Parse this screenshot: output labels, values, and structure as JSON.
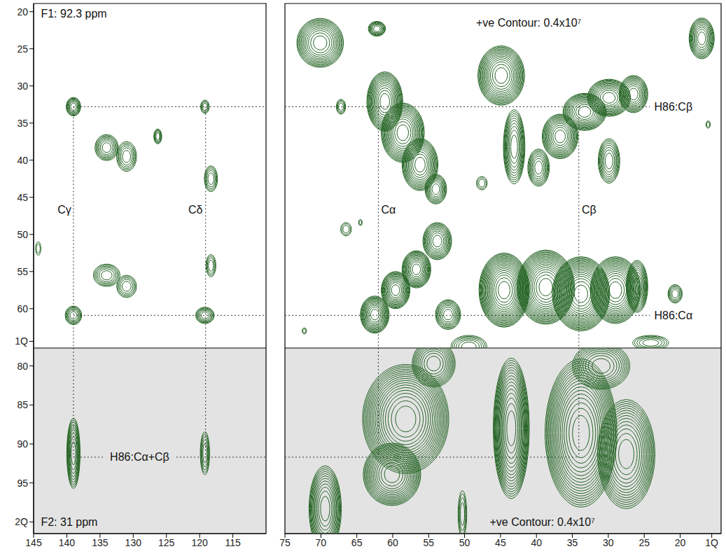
{
  "chart_data": [
    {
      "type": "contour",
      "tick_labels": "y",
      "color": "#236323",
      "line_style": "dotted",
      "xlim": [
        145,
        110
      ],
      "ylim": [
        65.3,
        18.9
      ],
      "yticks": [
        20,
        25,
        30,
        35,
        40,
        45,
        50,
        55,
        60,
        {
          "value": 64.4,
          "label": "1Q"
        }
      ],
      "peaks": [
        {
          "x": 139.0,
          "y": 32.8,
          "wx": 2.2,
          "wy": 2.5,
          "levels": 7
        },
        {
          "x": 119.2,
          "y": 32.8,
          "wx": 1.3,
          "wy": 1.8,
          "levels": 4
        },
        {
          "x": 134.0,
          "y": 38.3,
          "wx": 3.5,
          "wy": 3.5,
          "levels": 7
        },
        {
          "x": 131.0,
          "y": 39.5,
          "wx": 3.0,
          "wy": 4.0,
          "levels": 6
        },
        {
          "x": 126.3,
          "y": 36.8,
          "wx": 1.2,
          "wy": 2.0,
          "levels": 5
        },
        {
          "x": 118.3,
          "y": 42.5,
          "wx": 2.0,
          "wy": 3.5,
          "levels": 5
        },
        {
          "x": 134.0,
          "y": 55.5,
          "wx": 4.0,
          "wy": 3.0,
          "levels": 6
        },
        {
          "x": 131.0,
          "y": 57.0,
          "wx": 3.0,
          "wy": 3.0,
          "levels": 5
        },
        {
          "x": 118.3,
          "y": 54.2,
          "wx": 1.5,
          "wy": 3.0,
          "levels": 4
        },
        {
          "x": 139.0,
          "y": 60.9,
          "wx": 2.5,
          "wy": 2.5,
          "levels": 6
        },
        {
          "x": 119.2,
          "y": 60.9,
          "wx": 2.8,
          "wy": 2.2,
          "levels": 6
        },
        {
          "x": 144.3,
          "y": 51.9,
          "wx": 0.8,
          "wy": 1.8,
          "levels": 2
        }
      ],
      "guides": [
        {
          "x": [
            139,
            110
          ],
          "y": [
            32.8,
            32.8
          ]
        },
        {
          "x": [
            139,
            110
          ],
          "y": [
            60.9,
            60.9
          ]
        },
        {
          "x": [
            139,
            139
          ],
          "y": [
            32.8,
            65.3
          ]
        },
        {
          "x": [
            119.1,
            119.1
          ],
          "y": [
            32.8,
            65.3
          ]
        }
      ],
      "annotations": [
        {
          "text": "F1: 92.3 ppm",
          "x": 143.9,
          "y": 20.3
        },
        {
          "text": "Cγ",
          "x": 141.4,
          "y": 46.7
        },
        {
          "text": "Cδ",
          "x": 121.7,
          "y": 46.7
        }
      ]
    },
    {
      "type": "contour",
      "tick_labels": false,
      "color": "#236323",
      "line_style": "dotted",
      "xlim": [
        75,
        14.3
      ],
      "ylim": [
        65.3,
        18.9
      ],
      "peaks": [
        {
          "x": 70.1,
          "y": 24.2,
          "wx": 6.5,
          "wy": 6.6,
          "levels": 12
        },
        {
          "x": 62.2,
          "y": 22.3,
          "wx": 2.4,
          "wy": 2.0,
          "levels": 7
        },
        {
          "x": 17.0,
          "y": 23.6,
          "wx": 3.5,
          "wy": 5.5,
          "levels": 10
        },
        {
          "x": 67.2,
          "y": 32.8,
          "wx": 1.3,
          "wy": 2.0,
          "levels": 4
        },
        {
          "x": 61.1,
          "y": 32.1,
          "wx": 5,
          "wy": 8,
          "levels": 14
        },
        {
          "x": 58.6,
          "y": 36.3,
          "wx": 6,
          "wy": 8,
          "levels": 14
        },
        {
          "x": 56.2,
          "y": 40.6,
          "wx": 5,
          "wy": 7,
          "levels": 12
        },
        {
          "x": 54.0,
          "y": 43.9,
          "wx": 3,
          "wy": 4,
          "levels": 8
        },
        {
          "x": 44.9,
          "y": 28.6,
          "wx": 6.5,
          "wy": 8,
          "levels": 14
        },
        {
          "x": 43.1,
          "y": 38.2,
          "wx": 3,
          "wy": 10,
          "levels": 10
        },
        {
          "x": 39.7,
          "y": 41,
          "wx": 3,
          "wy": 5,
          "levels": 8
        },
        {
          "x": 36.7,
          "y": 36.8,
          "wx": 5,
          "wy": 6,
          "levels": 12
        },
        {
          "x": 33.3,
          "y": 33.5,
          "wx": 6,
          "wy": 5,
          "levels": 12
        },
        {
          "x": 29.9,
          "y": 31.6,
          "wx": 6,
          "wy": 5,
          "levels": 12
        },
        {
          "x": 26.5,
          "y": 31.1,
          "wx": 4,
          "wy": 5,
          "levels": 10
        },
        {
          "x": 29.9,
          "y": 40.1,
          "wx": 3,
          "wy": 6,
          "levels": 8
        },
        {
          "x": 16.1,
          "y": 35.2,
          "wx": 0.6,
          "wy": 1,
          "levels": 2
        },
        {
          "x": 47.6,
          "y": 43.1,
          "wx": 1.5,
          "wy": 1.8,
          "levels": 3
        },
        {
          "x": 66.5,
          "y": 49.3,
          "wx": 1.5,
          "wy": 1.8,
          "levels": 3
        },
        {
          "x": 64.5,
          "y": 48.4,
          "wx": 0.5,
          "wy": 0.8,
          "levels": 2
        },
        {
          "x": 62.5,
          "y": 60.8,
          "wx": 4,
          "wy": 5,
          "levels": 12
        },
        {
          "x": 59.6,
          "y": 57.5,
          "wx": 4,
          "wy": 5,
          "levels": 12
        },
        {
          "x": 56.7,
          "y": 54.7,
          "wx": 4,
          "wy": 5,
          "levels": 12
        },
        {
          "x": 53.8,
          "y": 50.9,
          "wx": 4,
          "wy": 5,
          "levels": 10
        },
        {
          "x": 44.5,
          "y": 57.5,
          "wx": 7,
          "wy": 10,
          "levels": 18
        },
        {
          "x": 38.7,
          "y": 57.1,
          "wx": 8,
          "wy": 10,
          "levels": 18
        },
        {
          "x": 33.8,
          "y": 58,
          "wx": 8,
          "wy": 10,
          "levels": 18
        },
        {
          "x": 29.0,
          "y": 57.5,
          "wx": 7,
          "wy": 9,
          "levels": 16
        },
        {
          "x": 26,
          "y": 57,
          "wx": 3,
          "wy": 7,
          "levels": 10
        },
        {
          "x": 52.3,
          "y": 60.8,
          "wx": 3.5,
          "wy": 4,
          "levels": 8
        },
        {
          "x": 20.7,
          "y": 58,
          "wx": 2,
          "wy": 2.5,
          "levels": 5
        },
        {
          "x": 49.4,
          "y": 65.1,
          "wx": 5,
          "wy": 3,
          "levels": 6
        },
        {
          "x": 72.3,
          "y": 63,
          "wx": 0.6,
          "wy": 0.8,
          "levels": 2
        },
        {
          "x": 24.1,
          "y": 64.6,
          "wx": 5,
          "wy": 2,
          "levels": 5
        }
      ],
      "guides": [
        {
          "x": [
            75,
            24.2
          ],
          "y": [
            32.8,
            32.8
          ]
        },
        {
          "x": [
            75,
            24.2
          ],
          "y": [
            60.9,
            60.9
          ]
        },
        {
          "x": [
            62,
            62
          ],
          "y": [
            32.8,
            65.3
          ]
        },
        {
          "x": [
            34.1,
            34.1
          ],
          "y": [
            32.8,
            65.3
          ]
        }
      ],
      "annotations": [
        {
          "text": "+ve Contour: 0.4x10⁷",
          "x": 48.4,
          "y": 21.5
        },
        {
          "text": "H86:Cβ",
          "x": 23.6,
          "y": 32.8
        },
        {
          "text": "H86:Cα",
          "x": 23.6,
          "y": 60.9
        },
        {
          "text": "Cα",
          "x": 61.6,
          "y": 46.7
        },
        {
          "text": "Cβ",
          "x": 33.7,
          "y": 46.7
        }
      ]
    },
    {
      "type": "contour",
      "tick_labels": true,
      "color": "#236323",
      "line_style": "dotted",
      "xlim": [
        145,
        110
      ],
      "ylim": [
        101.5,
        77.7
      ],
      "xticks": [
        145,
        140,
        135,
        130,
        125,
        120,
        115
      ],
      "yticks": [
        80,
        85,
        90,
        95,
        {
          "value": 100,
          "label": "2Q"
        }
      ],
      "peaks": [
        {
          "x": 139.0,
          "y": 91.2,
          "wx": 2,
          "wy": 9,
          "levels": 9
        },
        {
          "x": 119.2,
          "y": 91.2,
          "wx": 1.4,
          "wy": 5.5,
          "levels": 5
        }
      ],
      "guides": [
        {
          "x": [
            139,
            139
          ],
          "y": [
            77.7,
            91.7
          ]
        },
        {
          "x": [
            119.1,
            119.1
          ],
          "y": [
            77.7,
            91.7
          ]
        },
        {
          "x": [
            139,
            134.5
          ],
          "y": [
            91.7,
            91.7
          ]
        },
        {
          "x": [
            123.5,
            110
          ],
          "y": [
            91.7,
            91.7
          ]
        }
      ],
      "annotations": [
        {
          "text": "H86:Cα+Cβ",
          "x": 133.5,
          "y": 91.7
        },
        {
          "text": "F2: 31 ppm",
          "x": 143.9,
          "y": 100
        }
      ]
    },
    {
      "type": "contour",
      "tick_labels": "x",
      "color": "#236323",
      "line_style": "dotted",
      "xlim": [
        75,
        14.3
      ],
      "ylim": [
        101.5,
        77.7
      ],
      "xticks": [
        75,
        70,
        65,
        60,
        55,
        50,
        45,
        40,
        35,
        30,
        25,
        20,
        {
          "value": 15.6,
          "label": "1Q"
        }
      ],
      "peaks": [
        {
          "x": 58.2,
          "y": 86.8,
          "wx": 12,
          "wy": 14,
          "levels": 18
        },
        {
          "x": 54.3,
          "y": 79.7,
          "wx": 6,
          "wy": 6,
          "levels": 10
        },
        {
          "x": 60.1,
          "y": 93.9,
          "wx": 8,
          "wy": 8,
          "levels": 14
        },
        {
          "x": 43.5,
          "y": 88,
          "wx": 5,
          "wy": 18,
          "levels": 16
        },
        {
          "x": 33.8,
          "y": 88.6,
          "wx": 10,
          "wy": 19,
          "levels": 18
        },
        {
          "x": 31,
          "y": 80,
          "wx": 8,
          "wy": 6,
          "levels": 10
        },
        {
          "x": 27.5,
          "y": 91.3,
          "wx": 8,
          "wy": 14,
          "levels": 14
        },
        {
          "x": 69.4,
          "y": 98.3,
          "wx": 4.5,
          "wy": 11,
          "levels": 12
        },
        {
          "x": 50.3,
          "y": 99,
          "wx": 1.2,
          "wy": 6,
          "levels": 4
        }
      ],
      "guides": [
        {
          "x": [
            75,
            34.1
          ],
          "y": [
            91.7,
            91.7
          ]
        },
        {
          "x": [
            62,
            62
          ],
          "y": [
            77.7,
            91.7
          ]
        },
        {
          "x": [
            34.1,
            34.1
          ],
          "y": [
            77.7,
            91.7
          ]
        }
      ],
      "annotations": [
        {
          "text": "+ve Contour: 0.4x10⁷",
          "x": 46.5,
          "y": 100
        }
      ]
    }
  ]
}
